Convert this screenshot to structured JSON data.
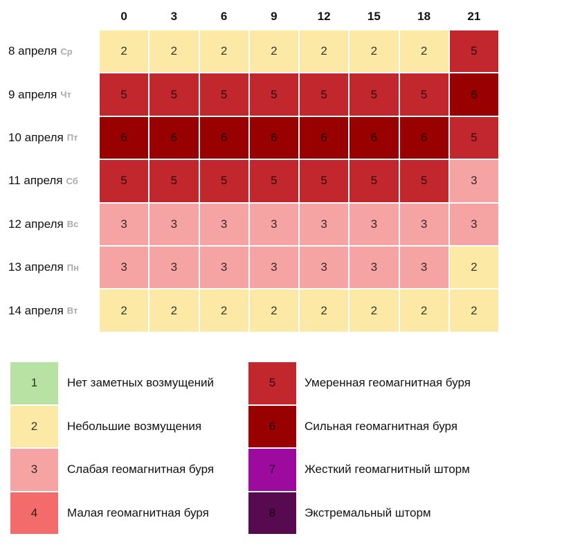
{
  "table": {
    "columns": [
      0,
      3,
      6,
      9,
      12,
      15,
      18,
      21
    ],
    "rows": [
      {
        "date": "8 апреля",
        "weekday": "Ср",
        "values": [
          2,
          2,
          2,
          2,
          2,
          2,
          2,
          5
        ]
      },
      {
        "date": "9 апреля",
        "weekday": "Чт",
        "values": [
          5,
          5,
          5,
          5,
          5,
          5,
          5,
          6
        ]
      },
      {
        "date": "10 апреля",
        "weekday": "Пт",
        "values": [
          6,
          6,
          6,
          6,
          6,
          6,
          6,
          5
        ]
      },
      {
        "date": "11 апреля",
        "weekday": "Сб",
        "values": [
          5,
          5,
          5,
          5,
          5,
          5,
          5,
          3
        ]
      },
      {
        "date": "12 апреля",
        "weekday": "Вс",
        "values": [
          3,
          3,
          3,
          3,
          3,
          3,
          3,
          3
        ]
      },
      {
        "date": "13 апреля",
        "weekday": "Пн",
        "values": [
          3,
          3,
          3,
          3,
          3,
          3,
          3,
          2
        ]
      },
      {
        "date": "14 апреля",
        "weekday": "Вт",
        "values": [
          2,
          2,
          2,
          2,
          2,
          2,
          2,
          2
        ]
      }
    ]
  },
  "legend": {
    "items": [
      {
        "level": 1,
        "label": "Нет заметных возмущений",
        "color": "#b8e2a3"
      },
      {
        "level": 2,
        "label": "Небольшие возмущения",
        "color": "#fde9a6"
      },
      {
        "level": 3,
        "label": "Слабая геомагнитная буря",
        "color": "#f5a3a3"
      },
      {
        "level": 4,
        "label": "Малая геомагнитная буря",
        "color": "#f36b6b"
      },
      {
        "level": 5,
        "label": "Умеренная геомагнитная буря",
        "color": "#c1272d"
      },
      {
        "level": 6,
        "label": "Сильная геомагнитная буря",
        "color": "#990000"
      },
      {
        "level": 7,
        "label": "Жесткий геомагнитный шторм",
        "color": "#9c0a9e"
      },
      {
        "level": 8,
        "label": "Экстремальный шторм",
        "color": "#580a50"
      }
    ]
  }
}
